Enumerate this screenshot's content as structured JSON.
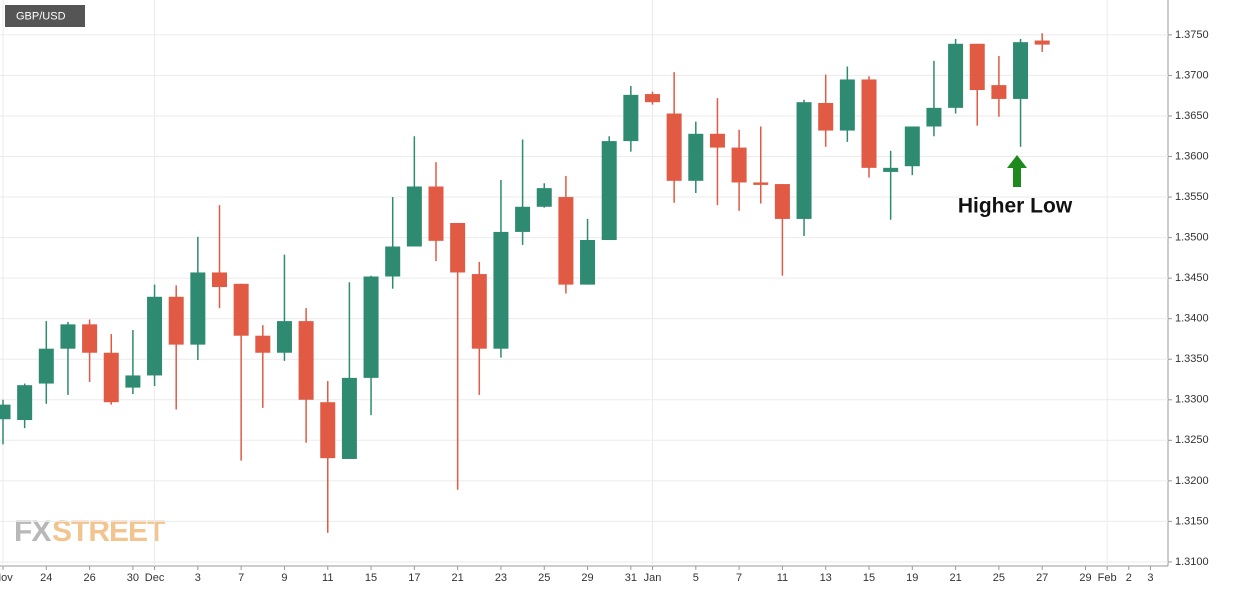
{
  "chart_data": {
    "type": "candlestick",
    "title": "GBP/USD",
    "annotation": "Higher Low",
    "watermark": [
      "FX",
      "STREET"
    ],
    "up_color": "#2e8a70",
    "down_color": "#e05a44",
    "grid": true,
    "categories": [
      "Nov",
      null,
      "24",
      null,
      "26",
      null,
      "30",
      "Dec",
      null,
      "3",
      null,
      "7",
      null,
      "9",
      null,
      "11",
      null,
      "15",
      null,
      "17",
      null,
      "21",
      null,
      "23",
      null,
      "25",
      null,
      "29",
      null,
      "31",
      "Jan",
      null,
      "5",
      null,
      "7",
      null,
      "11",
      null,
      "13",
      null,
      "15",
      null,
      "19",
      null,
      "21",
      null,
      "25",
      null,
      "27",
      null,
      "29",
      "Feb",
      "2",
      "3"
    ],
    "open": [
      1.3276,
      1.3275,
      1.332,
      1.3363,
      1.3393,
      1.3358,
      1.3315,
      1.333,
      1.3427,
      1.3368,
      1.3457,
      1.3443,
      1.3379,
      1.3358,
      1.3397,
      1.3297,
      1.3227,
      1.3327,
      1.3452,
      1.3489,
      1.3563,
      1.3518,
      1.3455,
      1.3363,
      1.3507,
      1.3538,
      1.355,
      1.3442,
      1.3497,
      1.3619,
      1.3677,
      1.3653,
      1.357,
      1.3628,
      1.3611,
      1.3568,
      1.3566,
      1.3523,
      1.3666,
      1.3632,
      1.3695,
      1.3581,
      1.3588,
      1.3637,
      1.366,
      1.3739,
      1.3688,
      1.3671,
      1.3743,
      null,
      null,
      null,
      null,
      null
    ],
    "high": [
      1.33,
      1.332,
      1.3397,
      1.3396,
      1.3399,
      1.3381,
      1.3386,
      1.3442,
      1.3441,
      1.3501,
      1.354,
      1.3443,
      1.3392,
      1.3479,
      1.3413,
      1.3323,
      1.3445,
      1.3453,
      1.355,
      1.3625,
      1.3593,
      1.3518,
      1.347,
      1.3571,
      1.3621,
      1.3567,
      1.3576,
      1.3523,
      1.3625,
      1.3687,
      1.368,
      1.3704,
      1.3643,
      1.3672,
      1.3633,
      1.3637,
      1.3566,
      1.367,
      1.3701,
      1.3711,
      1.3699,
      1.3607,
      1.3637,
      1.3718,
      1.3745,
      1.3739,
      1.3724,
      1.3745,
      1.3752,
      null,
      null,
      null,
      null,
      null
    ],
    "low": [
      1.3245,
      1.3265,
      1.3295,
      1.3306,
      1.3322,
      1.3294,
      1.3307,
      1.3317,
      1.3288,
      1.3349,
      1.3413,
      1.3225,
      1.329,
      1.3348,
      1.3247,
      1.3136,
      1.3227,
      1.3281,
      1.3437,
      1.3489,
      1.3471,
      1.3189,
      1.3306,
      1.3352,
      1.3491,
      1.3537,
      1.3431,
      1.3442,
      1.3497,
      1.3606,
      1.3664,
      1.3543,
      1.3555,
      1.354,
      1.3533,
      1.3542,
      1.3453,
      1.3502,
      1.3612,
      1.3618,
      1.3574,
      1.3522,
      1.3577,
      1.3625,
      1.3653,
      1.3638,
      1.3649,
      1.3612,
      1.3729,
      null,
      null,
      null,
      null,
      null
    ],
    "close": [
      1.3294,
      1.3318,
      1.3363,
      1.3393,
      1.3358,
      1.3297,
      1.333,
      1.3427,
      1.3368,
      1.3457,
      1.3439,
      1.3379,
      1.3358,
      1.3397,
      1.33,
      1.3228,
      1.3327,
      1.3452,
      1.3489,
      1.3563,
      1.3496,
      1.3457,
      1.3363,
      1.3507,
      1.3538,
      1.3561,
      1.3442,
      1.3497,
      1.3619,
      1.3676,
      1.3667,
      1.357,
      1.3628,
      1.3611,
      1.3568,
      1.3565,
      1.3523,
      1.3667,
      1.3632,
      1.3695,
      1.3586,
      1.3586,
      1.3637,
      1.366,
      1.3739,
      1.3682,
      1.3671,
      1.3741,
      1.3738,
      null,
      null,
      null,
      null,
      null
    ],
    "ylim": [
      1.3095,
      1.3793
    ],
    "yticks": [
      {
        "value": 1.31,
        "label": "1.3100"
      },
      {
        "value": 1.315,
        "label": "1.3150"
      },
      {
        "value": 1.32,
        "label": "1.3200"
      },
      {
        "value": 1.325,
        "label": "1.3250"
      },
      {
        "value": 1.33,
        "label": "1.3300"
      },
      {
        "value": 1.335,
        "label": "1.3350"
      },
      {
        "value": 1.34,
        "label": "1.3400"
      },
      {
        "value": 1.345,
        "label": "1.3450"
      },
      {
        "value": 1.35,
        "label": "1.3500"
      },
      {
        "value": 1.355,
        "label": "1.3550"
      },
      {
        "value": 1.36,
        "label": "1.3600"
      },
      {
        "value": 1.365,
        "label": "1.3650"
      },
      {
        "value": 1.37,
        "label": "1.3700"
      },
      {
        "value": 1.375,
        "label": "1.3750"
      }
    ]
  }
}
